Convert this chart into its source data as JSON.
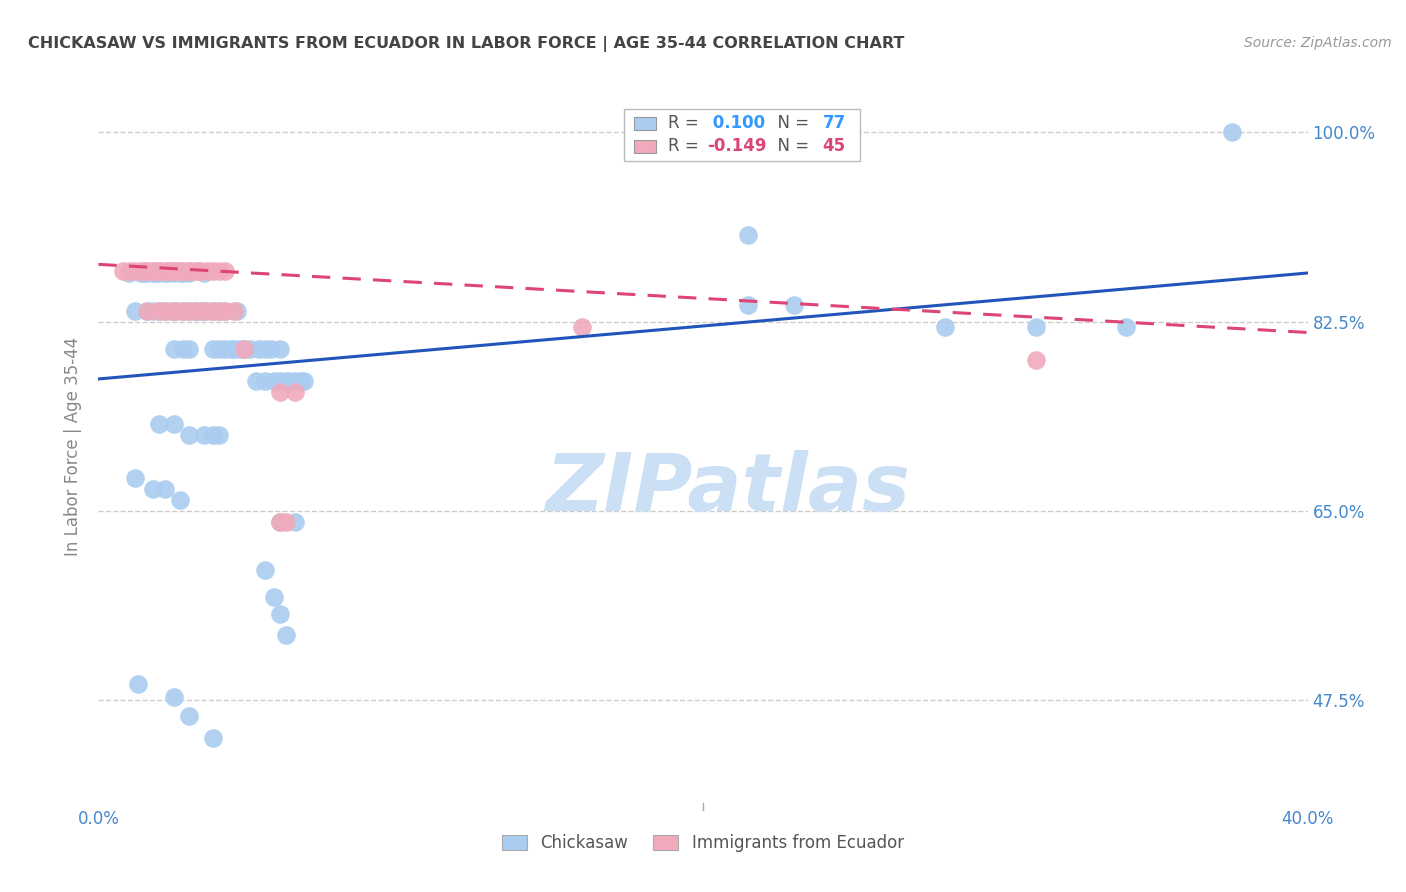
{
  "title": "CHICKASAW VS IMMIGRANTS FROM ECUADOR IN LABOR FORCE | AGE 35-44 CORRELATION CHART",
  "source": "Source: ZipAtlas.com",
  "ylabel": "In Labor Force | Age 35-44",
  "xlim": [
    0.0,
    0.4
  ],
  "ylim": [
    0.38,
    1.04
  ],
  "yticks": [
    0.475,
    0.65,
    0.825,
    1.0
  ],
  "ytick_labels": [
    "47.5%",
    "65.0%",
    "82.5%",
    "100.0%"
  ],
  "xticks": [
    0.0,
    0.08,
    0.16,
    0.24,
    0.32,
    0.4
  ],
  "xtick_labels": [
    "0.0%",
    "",
    "",
    "",
    "",
    "40.0%"
  ],
  "blue_color": "#aaccf0",
  "pink_color": "#f0aabb",
  "blue_line_color": "#2255bb",
  "pink_line_color": "#dd4477",
  "blue_scatter": [
    [
      0.01,
      0.87
    ],
    [
      0.012,
      0.835
    ],
    [
      0.014,
      0.87
    ],
    [
      0.015,
      0.87
    ],
    [
      0.016,
      0.835
    ],
    [
      0.016,
      0.87
    ],
    [
      0.018,
      0.835
    ],
    [
      0.018,
      0.87
    ],
    [
      0.019,
      0.87
    ],
    [
      0.02,
      0.835
    ],
    [
      0.02,
      0.87
    ],
    [
      0.022,
      0.835
    ],
    [
      0.022,
      0.87
    ],
    [
      0.023,
      0.87
    ],
    [
      0.024,
      0.835
    ],
    [
      0.025,
      0.8
    ],
    [
      0.025,
      0.835
    ],
    [
      0.025,
      0.87
    ],
    [
      0.026,
      0.835
    ],
    [
      0.027,
      0.87
    ],
    [
      0.028,
      0.8
    ],
    [
      0.028,
      0.835
    ],
    [
      0.028,
      0.87
    ],
    [
      0.03,
      0.8
    ],
    [
      0.03,
      0.835
    ],
    [
      0.03,
      0.87
    ],
    [
      0.032,
      0.835
    ],
    [
      0.033,
      0.835
    ],
    [
      0.034,
      0.835
    ],
    [
      0.035,
      0.835
    ],
    [
      0.035,
      0.87
    ],
    [
      0.036,
      0.835
    ],
    [
      0.038,
      0.8
    ],
    [
      0.038,
      0.835
    ],
    [
      0.04,
      0.8
    ],
    [
      0.04,
      0.835
    ],
    [
      0.042,
      0.8
    ],
    [
      0.042,
      0.835
    ],
    [
      0.044,
      0.8
    ],
    [
      0.045,
      0.8
    ],
    [
      0.046,
      0.835
    ],
    [
      0.047,
      0.8
    ],
    [
      0.048,
      0.8
    ],
    [
      0.05,
      0.8
    ],
    [
      0.052,
      0.77
    ],
    [
      0.053,
      0.8
    ],
    [
      0.055,
      0.77
    ],
    [
      0.055,
      0.8
    ],
    [
      0.057,
      0.8
    ],
    [
      0.058,
      0.77
    ],
    [
      0.06,
      0.77
    ],
    [
      0.06,
      0.8
    ],
    [
      0.062,
      0.77
    ],
    [
      0.063,
      0.77
    ],
    [
      0.065,
      0.77
    ],
    [
      0.067,
      0.77
    ],
    [
      0.068,
      0.77
    ],
    [
      0.02,
      0.73
    ],
    [
      0.025,
      0.73
    ],
    [
      0.03,
      0.72
    ],
    [
      0.035,
      0.72
    ],
    [
      0.038,
      0.72
    ],
    [
      0.04,
      0.72
    ],
    [
      0.012,
      0.68
    ],
    [
      0.018,
      0.67
    ],
    [
      0.022,
      0.67
    ],
    [
      0.027,
      0.66
    ],
    [
      0.06,
      0.64
    ],
    [
      0.065,
      0.64
    ],
    [
      0.055,
      0.595
    ],
    [
      0.058,
      0.57
    ],
    [
      0.06,
      0.555
    ],
    [
      0.062,
      0.535
    ],
    [
      0.013,
      0.49
    ],
    [
      0.025,
      0.478
    ],
    [
      0.03,
      0.46
    ],
    [
      0.038,
      0.44
    ],
    [
      0.195,
      1.0
    ],
    [
      0.375,
      1.0
    ],
    [
      0.215,
      0.905
    ],
    [
      0.215,
      0.84
    ],
    [
      0.23,
      0.84
    ],
    [
      0.28,
      0.82
    ],
    [
      0.31,
      0.82
    ],
    [
      0.34,
      0.82
    ]
  ],
  "pink_scatter": [
    [
      0.008,
      0.872
    ],
    [
      0.01,
      0.872
    ],
    [
      0.012,
      0.872
    ],
    [
      0.014,
      0.872
    ],
    [
      0.015,
      0.872
    ],
    [
      0.016,
      0.872
    ],
    [
      0.018,
      0.872
    ],
    [
      0.018,
      0.872
    ],
    [
      0.02,
      0.872
    ],
    [
      0.02,
      0.872
    ],
    [
      0.022,
      0.872
    ],
    [
      0.023,
      0.872
    ],
    [
      0.024,
      0.872
    ],
    [
      0.025,
      0.872
    ],
    [
      0.026,
      0.872
    ],
    [
      0.027,
      0.872
    ],
    [
      0.028,
      0.872
    ],
    [
      0.03,
      0.872
    ],
    [
      0.03,
      0.872
    ],
    [
      0.032,
      0.872
    ],
    [
      0.033,
      0.872
    ],
    [
      0.034,
      0.872
    ],
    [
      0.036,
      0.872
    ],
    [
      0.038,
      0.872
    ],
    [
      0.04,
      0.872
    ],
    [
      0.042,
      0.872
    ],
    [
      0.016,
      0.835
    ],
    [
      0.02,
      0.835
    ],
    [
      0.022,
      0.835
    ],
    [
      0.025,
      0.835
    ],
    [
      0.028,
      0.835
    ],
    [
      0.03,
      0.835
    ],
    [
      0.032,
      0.835
    ],
    [
      0.035,
      0.835
    ],
    [
      0.038,
      0.835
    ],
    [
      0.04,
      0.835
    ],
    [
      0.042,
      0.835
    ],
    [
      0.045,
      0.835
    ],
    [
      0.048,
      0.8
    ],
    [
      0.06,
      0.76
    ],
    [
      0.065,
      0.76
    ],
    [
      0.06,
      0.64
    ],
    [
      0.062,
      0.64
    ],
    [
      0.16,
      0.82
    ],
    [
      0.31,
      0.79
    ]
  ],
  "blue_trend_x": [
    0.0,
    0.4
  ],
  "blue_trend_y": [
    0.772,
    0.87
  ],
  "pink_trend_x": [
    0.0,
    0.4
  ],
  "pink_trend_y": [
    0.878,
    0.815
  ],
  "watermark": "ZIPatlas",
  "watermark_color": "#cce0f5",
  "bg_color": "#ffffff",
  "grid_color": "#cccccc",
  "title_color": "#444444",
  "tick_color": "#4488cc",
  "legend_r_color_blue": "#3399ff",
  "legend_r_color_pink": "#dd4477",
  "legend_box_edge": "#bbbbbb"
}
